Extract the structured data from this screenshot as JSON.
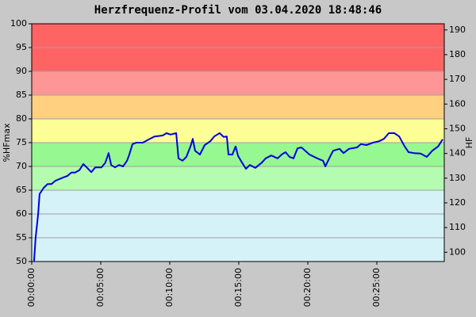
{
  "chart_data": {
    "type": "line",
    "title": "Herzfrequenz-Profil vom 03.04.2020 18:48:46",
    "y_label": "%HFmax",
    "y2_label": "HF",
    "xlim": [
      0,
      1793
    ],
    "xticks": [
      {
        "value": 0,
        "label": "00:00:00"
      },
      {
        "value": 300,
        "label": "00:05:00"
      },
      {
        "value": 600,
        "label": "00:10:00"
      },
      {
        "value": 900,
        "label": "00:15:00"
      },
      {
        "value": 1200,
        "label": "00:20:00"
      },
      {
        "value": 1500,
        "label": "00:25:00"
      }
    ],
    "ylim": [
      50,
      100
    ],
    "yticks": [
      50,
      55,
      60,
      65,
      70,
      75,
      80,
      85,
      90,
      95,
      100
    ],
    "y2lim": [
      96.25,
      192.5
    ],
    "y2ticks": [
      100,
      110,
      120,
      130,
      140,
      150,
      160,
      170,
      180,
      190
    ],
    "grid": true,
    "bands": [
      {
        "from": 50,
        "to": 65,
        "color": "#d4f2f8"
      },
      {
        "from": 65,
        "to": 70,
        "color": "#b4fcb0"
      },
      {
        "from": 70,
        "to": 75,
        "color": "#96f890"
      },
      {
        "from": 75,
        "to": 80,
        "color": "#fefe96"
      },
      {
        "from": 80,
        "to": 85,
        "color": "#fed080"
      },
      {
        "from": 85,
        "to": 90,
        "color": "#fe9696"
      },
      {
        "from": 90,
        "to": 100,
        "color": "#fe6464"
      }
    ],
    "x": [
      10,
      17,
      28,
      34,
      52,
      69,
      86,
      103,
      138,
      155,
      172,
      188,
      207,
      224,
      241,
      259,
      276,
      303,
      320,
      334,
      345,
      362,
      379,
      397,
      414,
      424,
      438,
      455,
      483,
      510,
      534,
      569,
      586,
      603,
      628,
      638,
      655,
      672,
      690,
      700,
      710,
      731,
      752,
      776,
      793,
      817,
      834,
      848,
      855,
      872,
      886,
      897,
      914,
      931,
      948,
      972,
      1000,
      1017,
      1041,
      1069,
      1086,
      1103,
      1121,
      1138,
      1155,
      1172,
      1207,
      1241,
      1266,
      1276,
      1293,
      1310,
      1338,
      1355,
      1379,
      1414,
      1431,
      1455,
      1483,
      1510,
      1531,
      1552,
      1576,
      1597,
      1621,
      1638,
      1662,
      1690,
      1717,
      1741,
      1766,
      1786
    ],
    "series": [
      {
        "color": "#0000dd",
        "values": [
          50,
          55,
          60,
          64.2,
          65.5,
          66.3,
          66.3,
          67,
          67.7,
          68,
          68.7,
          68.7,
          69.2,
          70.5,
          69.7,
          68.8,
          69.8,
          69.8,
          70.8,
          72.8,
          70.3,
          69.8,
          70.3,
          70,
          71.2,
          72.5,
          74.7,
          75,
          75,
          75.7,
          76.3,
          76.5,
          77,
          76.7,
          77,
          71.7,
          71.2,
          72,
          74.2,
          75.8,
          73.3,
          72.5,
          74.5,
          75.3,
          76.3,
          77,
          76.2,
          76.3,
          72.5,
          72.5,
          74.2,
          72.2,
          70.8,
          69.5,
          70.3,
          69.7,
          70.8,
          71.7,
          72.3,
          71.7,
          72.5,
          73,
          72,
          71.7,
          73.8,
          74,
          72.5,
          71.7,
          71.2,
          70,
          71.7,
          73.3,
          73.7,
          72.8,
          73.7,
          74,
          74.7,
          74.5,
          75,
          75.3,
          75.8,
          77,
          77,
          76.3,
          74.2,
          73,
          72.8,
          72.7,
          72,
          73.3,
          74.2,
          75.7
        ]
      }
    ]
  }
}
